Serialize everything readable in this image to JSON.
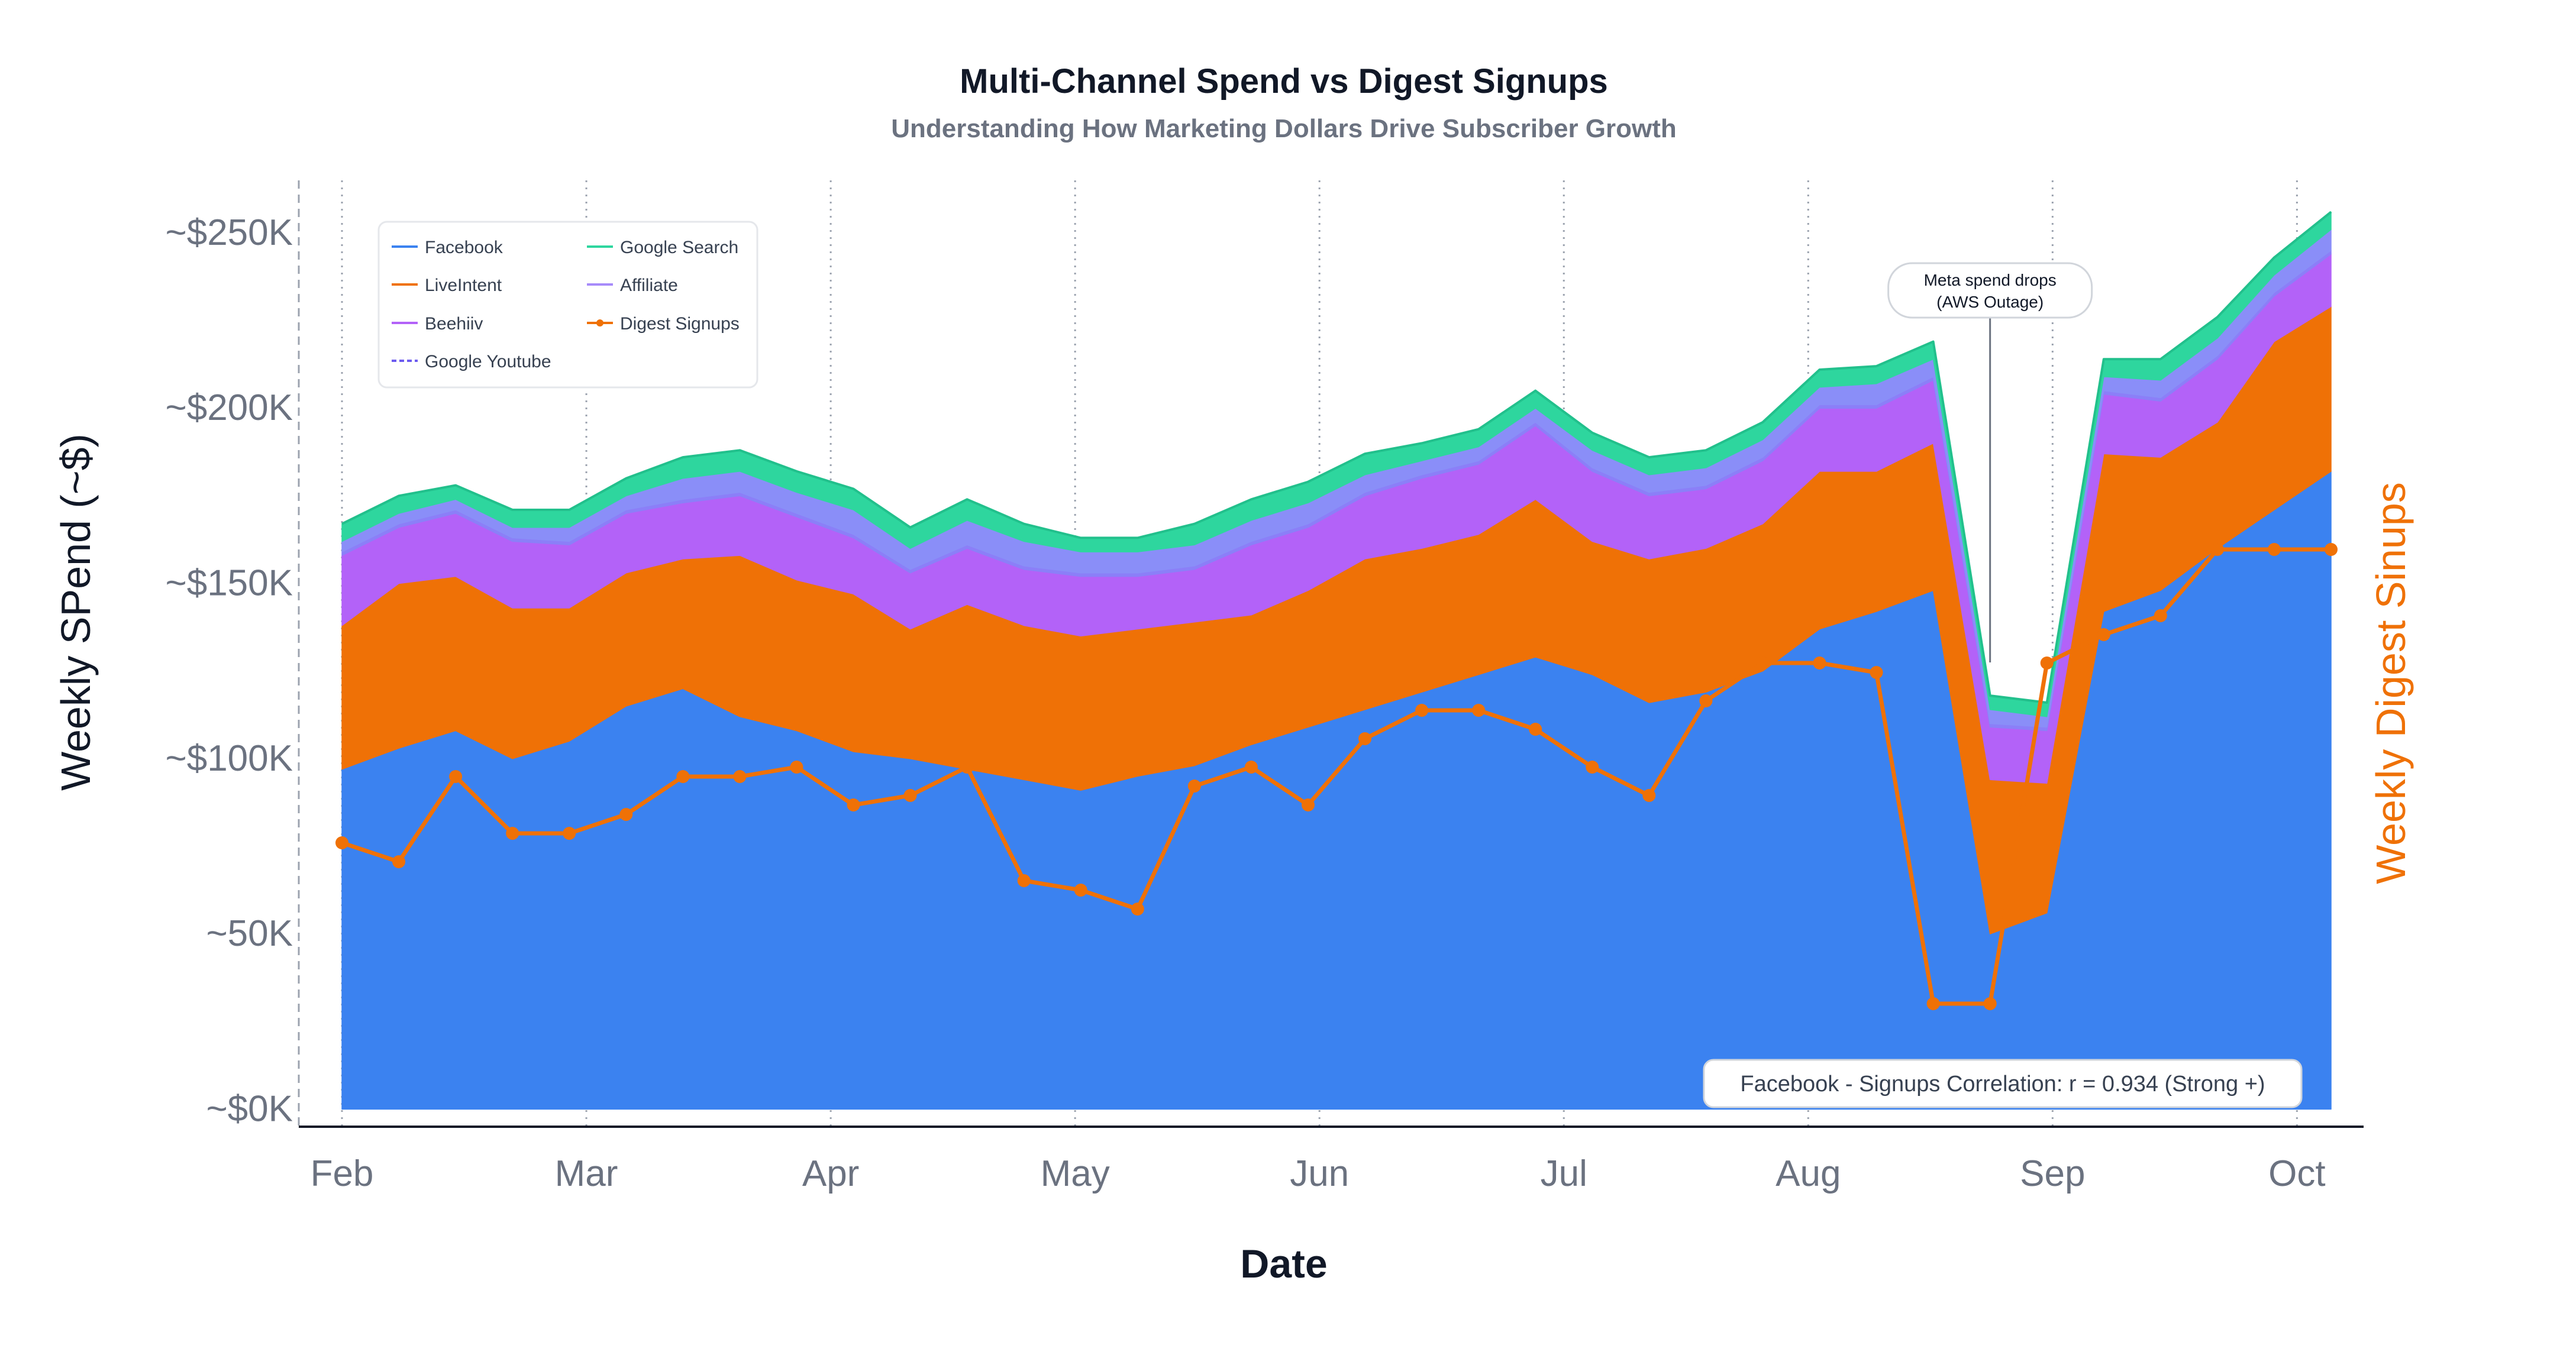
{
  "chart_data": {
    "type": "area",
    "title": "Multi-Channel Spend vs Digest Signups",
    "subtitle": "Understanding How Marketing Dollars Drive Subscriber Growth",
    "xlabel": "Date",
    "ylabel": "Weekly SPend (~$)",
    "y2label": "Weekly Digest Sinups",
    "ylim": [
      -5000,
      265000
    ],
    "y2lim": [
      0,
      1
    ],
    "yticks": [
      0,
      50000,
      100000,
      150000,
      200000,
      250000
    ],
    "ytick_labels": [
      "~$0K",
      "~50K",
      "~$100K",
      "~$150K",
      "~$200K",
      "~$250K"
    ],
    "x_ticks": [
      {
        "label": "Feb",
        "pos": 0
      },
      {
        "label": "Mar",
        "pos": 4.3
      },
      {
        "label": "Apr",
        "pos": 8.6
      },
      {
        "label": "May",
        "pos": 12.9
      },
      {
        "label": "Jun",
        "pos": 17.2
      },
      {
        "label": "Jul",
        "pos": 21.5
      },
      {
        "label": "Aug",
        "pos": 25.8
      },
      {
        "label": "Sep",
        "pos": 30.1
      },
      {
        "label": "Oct",
        "pos": 34.4
      }
    ],
    "x_count": 36,
    "series_order": [
      "Facebook",
      "LiveIntent",
      "Beehiiv",
      "Google Youtube",
      "Affiliate",
      "Google Search"
    ],
    "series": [
      {
        "name": "Facebook",
        "color": "#3b82f0",
        "line_color": "#3b82f0",
        "values": [
          97000,
          103000,
          108000,
          100000,
          105000,
          115000,
          120000,
          112000,
          108000,
          102000,
          100000,
          97000,
          94000,
          91000,
          95000,
          98000,
          104000,
          109000,
          114000,
          119000,
          124000,
          129000,
          124000,
          116000,
          119000,
          125000,
          137000,
          142000,
          148000,
          50000,
          56000,
          142000,
          148000,
          160000,
          171000,
          182000
        ]
      },
      {
        "name": "LiveIntent",
        "color": "#ef7106",
        "line_color": "#ef7106",
        "values": [
          41000,
          47000,
          44000,
          43000,
          38000,
          38000,
          37000,
          46000,
          43000,
          45000,
          37000,
          47000,
          44000,
          44000,
          42000,
          41000,
          37000,
          39000,
          43000,
          41000,
          40000,
          45000,
          38000,
          41000,
          41000,
          42000,
          45000,
          40000,
          42000,
          44000,
          37000,
          45000,
          38000,
          36000,
          48000,
          47000
        ]
      },
      {
        "name": "Beehiiv",
        "color": "#b362f8",
        "line_color": "#b362f8",
        "values": [
          20000,
          16000,
          18000,
          19000,
          18000,
          17000,
          16000,
          17000,
          18000,
          16000,
          16000,
          16000,
          16000,
          17000,
          15000,
          15000,
          20000,
          18000,
          18000,
          20000,
          20000,
          21000,
          20000,
          18000,
          17000,
          18000,
          18000,
          18000,
          18000,
          15000,
          15000,
          17000,
          16000,
          18000,
          13000,
          15000
        ]
      },
      {
        "name": "Google Youtube",
        "color": "#8b7ff8",
        "line_color": "#6d5cf0",
        "dash": "14,8",
        "values": [
          1000,
          1000,
          1000,
          1000,
          1000,
          1000,
          1000,
          1000,
          1000,
          1000,
          1000,
          1000,
          1000,
          1000,
          1000,
          1000,
          1000,
          1000,
          1000,
          1000,
          1000,
          1000,
          1000,
          1000,
          1000,
          1000,
          1000,
          1000,
          1000,
          1000,
          1000,
          1000,
          1000,
          1000,
          1000,
          1000
        ]
      },
      {
        "name": "Affiliate",
        "color": "#8a8ef8",
        "line_color": "#a78bfa",
        "values": [
          3000,
          3000,
          3000,
          3000,
          4000,
          4000,
          6000,
          6000,
          6000,
          7000,
          6000,
          7000,
          7000,
          6000,
          6000,
          6000,
          6000,
          6000,
          5000,
          4000,
          4000,
          4000,
          5000,
          5000,
          5000,
          5000,
          5000,
          6000,
          5000,
          4000,
          3000,
          4000,
          5000,
          5000,
          5000,
          6000
        ]
      },
      {
        "name": "Google Search",
        "color": "#2ed69e",
        "line_color": "#2ed69e",
        "values": [
          5000,
          5000,
          4000,
          5000,
          5000,
          5000,
          6000,
          6000,
          6000,
          6000,
          6000,
          6000,
          5000,
          4000,
          4000,
          6000,
          6000,
          6000,
          6000,
          5000,
          5000,
          5000,
          5000,
          5000,
          5000,
          5000,
          5000,
          5000,
          5000,
          4000,
          4000,
          5000,
          6000,
          6000,
          5000,
          5000
        ]
      }
    ],
    "signups": {
      "name": "Digest Signups",
      "color": "#ef7106",
      "values": [
        0.3,
        0.28,
        0.37,
        0.31,
        0.31,
        0.33,
        0.37,
        0.37,
        0.38,
        0.34,
        0.35,
        0.38,
        0.26,
        0.25,
        0.23,
        0.36,
        0.38,
        0.34,
        0.41,
        0.44,
        0.44,
        0.42,
        0.38,
        0.35,
        0.45,
        0.49,
        0.49,
        0.48,
        0.13,
        0.13,
        0.49,
        0.52,
        0.54,
        0.61,
        0.61,
        0.61
      ]
    },
    "legend": {
      "placement": "top-left",
      "columns": [
        [
          "Facebook",
          "LiveIntent",
          "Beehiiv",
          "Google Youtube"
        ],
        [
          "Google Search",
          "Affiliate",
          "Digest Signups"
        ]
      ]
    },
    "annotation": {
      "text_line1": "Meta spend drops",
      "text_line2": "(AWS Outage)",
      "x_index": 29
    },
    "correlation_label": "Facebook - Signups Correlation: r = 0.934 (Strong +)",
    "grid": "vertical"
  }
}
